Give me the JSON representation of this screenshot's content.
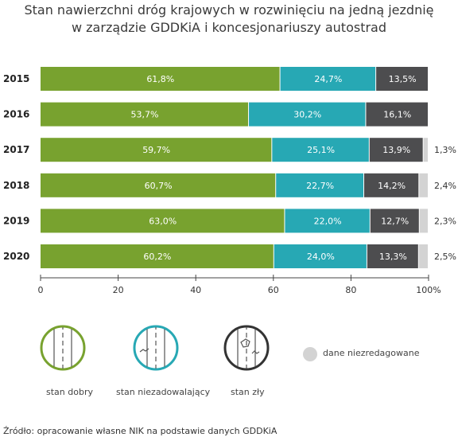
{
  "chart_data": {
    "type": "bar",
    "orientation": "horizontal",
    "stacked": true,
    "title_line1": "Stan nawierzchni dróg krajowych w rozwinięciu na jedną jezdnię",
    "title_line2": "w zarządzie GDDKiA i koncesjonariuszy autostrad",
    "categories": [
      "2015",
      "2016",
      "2017",
      "2018",
      "2019",
      "2020"
    ],
    "series": [
      {
        "key": "dobry",
        "color": "#78a22f",
        "values": [
          61.8,
          53.7,
          59.7,
          60.7,
          63.0,
          60.2
        ],
        "labels": [
          "61,8%",
          "53,7%",
          "59,7%",
          "60,7%",
          "63,0%",
          "60,2%"
        ]
      },
      {
        "key": "niezadowalajacy",
        "color": "#27a8b4",
        "values": [
          24.7,
          30.2,
          25.1,
          22.7,
          22.0,
          24.0
        ],
        "labels": [
          "24,7%",
          "30,2%",
          "25,1%",
          "22,7%",
          "22,0%",
          "24,0%"
        ]
      },
      {
        "key": "zly",
        "color": "#4d4d4f",
        "values": [
          13.5,
          16.1,
          13.9,
          14.2,
          12.7,
          13.3
        ],
        "labels": [
          "13,5%",
          "16,1%",
          "13,9%",
          "14,2%",
          "12,7%",
          "13,3%"
        ]
      },
      {
        "key": "nieredagowane",
        "color": "#d3d3d3",
        "values": [
          0,
          0,
          1.3,
          2.4,
          2.3,
          2.5
        ],
        "labels": [
          "",
          "",
          "1,3%",
          "2,4%",
          "2,3%",
          "2,5%"
        ]
      }
    ],
    "xlim": [
      0,
      100
    ],
    "x_ticks": [
      {
        "value": 0,
        "label": "0"
      },
      {
        "value": 20,
        "label": "20"
      },
      {
        "value": 40,
        "label": "40"
      },
      {
        "value": 60,
        "label": "60"
      },
      {
        "value": 80,
        "label": "80"
      },
      {
        "value": 100,
        "label": "100%"
      }
    ],
    "legend": {
      "dobry": "stan dobry",
      "niezadowalajacy": "stan niezadowalający",
      "zly": "stan zły",
      "nieredagowane": "dane niezredagowane"
    },
    "source": "Źródło: opracowanie własne NIK na podstawie danych GDDKiA"
  }
}
